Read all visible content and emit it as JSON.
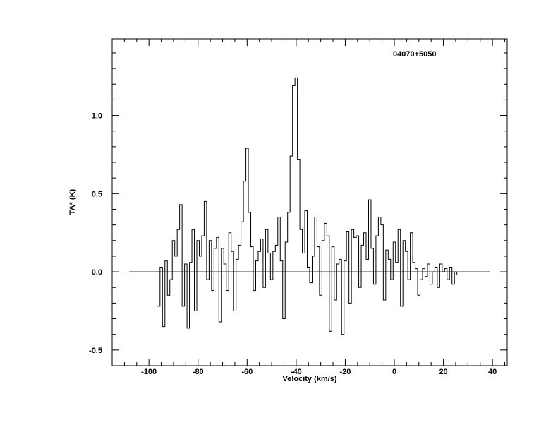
{
  "chart_data": {
    "type": "line",
    "title": "",
    "annotation": "04070+5050",
    "xlabel": "Velocity (km/s)",
    "ylabel": "TA* (K)",
    "xlim": [
      -115,
      46
    ],
    "ylim": [
      -0.6,
      1.49
    ],
    "xticks": [
      -100,
      -80,
      -60,
      -40,
      -20,
      0,
      20,
      40
    ],
    "xtick_labels": [
      "-100",
      "-80",
      "-60",
      "-40",
      "-20",
      "0",
      "20",
      "40"
    ],
    "yticks": [
      -0.5,
      0.0,
      0.5,
      1.0
    ],
    "ytick_labels": [
      "-0.5",
      "0.0",
      "0.5",
      "1.0"
    ],
    "baseline": 0.0,
    "baseline_range": [
      -108,
      39
    ],
    "grid": false,
    "series": [
      {
        "style": "histogram",
        "x": [
          -96,
          -95,
          -94,
          -93,
          -92,
          -91,
          -90,
          -89,
          -88,
          -87,
          -86,
          -85,
          -84,
          -83,
          -82,
          -81,
          -80,
          -79,
          -78,
          -77,
          -76,
          -75,
          -74,
          -73,
          -72,
          -71,
          -70,
          -69,
          -68,
          -67,
          -66,
          -65,
          -64,
          -63,
          -62,
          -61,
          -60,
          -59,
          -58,
          -57,
          -56,
          -55,
          -54,
          -53,
          -52,
          -51,
          -50,
          -49,
          -48,
          -47,
          -46,
          -45,
          -44,
          -43,
          -42,
          -41,
          -40,
          -39,
          -38,
          -37,
          -36,
          -35,
          -34,
          -33,
          -32,
          -31,
          -30,
          -29,
          -28,
          -27,
          -26,
          -25,
          -24,
          -23,
          -22,
          -21,
          -20,
          -19,
          -18,
          -17,
          -16,
          -15,
          -14,
          -13,
          -12,
          -11,
          -10,
          -9,
          -8,
          -7,
          -6,
          -5,
          -4,
          -3,
          -2,
          -1,
          0,
          1,
          2,
          3,
          4,
          5,
          6,
          7,
          8,
          9,
          10,
          11,
          12,
          13,
          14,
          15,
          16,
          17,
          18,
          19,
          20,
          21,
          22,
          23,
          24,
          25,
          26
        ],
        "y": [
          -0.22,
          0.03,
          -0.35,
          0.07,
          -0.15,
          -0.05,
          0.2,
          0.1,
          0.27,
          0.43,
          -0.22,
          0.05,
          -0.36,
          0.06,
          0.27,
          -0.25,
          0.2,
          0.1,
          0.23,
          0.45,
          -0.05,
          0.2,
          -0.12,
          0.15,
          0.22,
          -0.32,
          0.15,
          0.05,
          -0.12,
          0.25,
          0.13,
          -0.25,
          0.08,
          0.17,
          0.32,
          0.58,
          0.79,
          0.38,
          0.16,
          -0.12,
          0.07,
          0.13,
          0.21,
          -0.1,
          0.27,
          0.12,
          -0.05,
          0.13,
          0.17,
          0.35,
          0.07,
          -0.3,
          0.19,
          0.38,
          0.74,
          1.19,
          1.24,
          0.72,
          0.27,
          0.12,
          0.39,
          0.03,
          -0.07,
          0.1,
          0.35,
          0.16,
          -0.15,
          0.2,
          0.31,
          0.23,
          -0.38,
          0.16,
          -0.18,
          0.05,
          0.08,
          -0.4,
          0.07,
          0.26,
          -0.2,
          0.27,
          0.22,
          0.23,
          -0.1,
          0.17,
          0.25,
          0.08,
          0.46,
          0.15,
          -0.08,
          0.23,
          0.35,
          0.3,
          -0.18,
          0.14,
          0.08,
          -0.05,
          0.19,
          0.06,
          0.27,
          -0.22,
          0.2,
          0.13,
          -0.05,
          0.25,
          0.06,
          0.02,
          -0.15,
          -0.05,
          0.02,
          -0.03,
          0.05,
          -0.08,
          0.0,
          0.03,
          -0.1,
          0.05,
          0.0,
          0.02,
          -0.05,
          0.03,
          -0.08,
          0.0,
          -0.02
        ]
      }
    ]
  }
}
